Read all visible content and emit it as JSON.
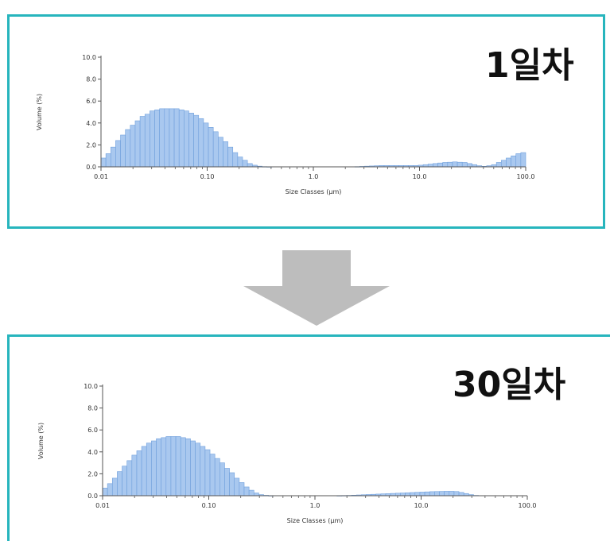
{
  "panels": [
    {
      "label": "1일차"
    },
    {
      "label": "30일차"
    }
  ],
  "colors": {
    "border": "#27b5bd",
    "bar_fill": "#a9c8ef",
    "bar_stroke": "#6f9fdc",
    "arrow": "#bdbdbd",
    "axis": "#555555"
  },
  "chart_data": [
    {
      "type": "bar",
      "xlabel": "Size Classes (µm)",
      "ylabel": "Volume (%)",
      "xscale": "log",
      "xlim": [
        0.01,
        100.0
      ],
      "ylim": [
        0,
        10
      ],
      "xticks": [
        "0.01",
        "0.10",
        "1.0",
        "10.0",
        "100.0"
      ],
      "yticks": [
        "0.0",
        "2.0",
        "4.0",
        "6.0",
        "8.0",
        "10.0"
      ],
      "grid": false,
      "x": [
        0.0106,
        0.0118,
        0.0131,
        0.0146,
        0.0162,
        0.018,
        0.0201,
        0.0223,
        0.0248,
        0.0276,
        0.0307,
        0.0341,
        0.0379,
        0.0421,
        0.0469,
        0.0521,
        0.058,
        0.0644,
        0.0717,
        0.0797,
        0.0886,
        0.0985,
        0.1096,
        0.1218,
        0.1355,
        0.1507,
        0.1675,
        0.1863,
        0.2071,
        0.2303,
        0.2561,
        0.2848,
        0.3167,
        0.3521,
        0.3915,
        0.4353,
        0.4841,
        0.5383,
        0.5986,
        0.6656,
        0.7401,
        0.823,
        0.9151,
        1.0176,
        1.1315,
        1.2582,
        1.3991,
        1.5557,
        1.7299,
        1.9236,
        2.139,
        2.3785,
        2.6448,
        2.941,
        3.2703,
        3.6364,
        4.0436,
        4.4963,
        4.9998,
        5.5596,
        6.1821,
        6.8744,
        7.6441,
        8.5,
        9.4517,
        10.5101,
        11.6869,
        12.9956,
        14.4507,
        16.0688,
        17.868,
        19.8688,
        22.0935,
        24.5673,
        27.3182,
        30.3771,
        33.7785,
        37.5607,
        41.7665,
        46.4431,
        51.6434,
        57.4259,
        63.856,
        71.006,
        78.9566,
        87.7975,
        97.6283
      ],
      "series": [
        {
          "values": [
            0.8,
            1.2,
            1.8,
            2.4,
            2.9,
            3.4,
            3.8,
            4.2,
            4.6,
            4.8,
            5.1,
            5.2,
            5.3,
            5.3,
            5.3,
            5.3,
            5.2,
            5.1,
            4.9,
            4.7,
            4.4,
            4.0,
            3.6,
            3.2,
            2.7,
            2.3,
            1.8,
            1.3,
            0.9,
            0.6,
            0.3,
            0.15,
            0.06,
            0.02,
            0.01,
            0,
            0,
            0,
            0,
            0,
            0,
            0,
            0,
            0,
            0,
            0,
            0,
            0,
            0,
            0,
            0,
            0,
            0.02,
            0.04,
            0.06,
            0.08,
            0.1,
            0.12,
            0.12,
            0.12,
            0.12,
            0.12,
            0.12,
            0.12,
            0.12,
            0.15,
            0.2,
            0.25,
            0.3,
            0.35,
            0.4,
            0.42,
            0.45,
            0.42,
            0.4,
            0.3,
            0.2,
            0.1,
            0.05,
            0.1,
            0.2,
            0.4,
            0.6,
            0.8,
            1.0,
            1.2,
            1.3
          ]
        }
      ]
    },
    {
      "type": "bar",
      "xlabel": "Size Classes (µm)",
      "ylabel": "Volume (%)",
      "xscale": "log",
      "xlim": [
        0.01,
        100.0
      ],
      "ylim": [
        0,
        10
      ],
      "xticks": [
        "0.01",
        "0.10",
        "1.0",
        "10.0",
        "100.0"
      ],
      "yticks": [
        "0.0",
        "2.0",
        "4.0",
        "6.0",
        "8.0",
        "10.0"
      ],
      "grid": false,
      "x": [
        0.0106,
        0.0118,
        0.0131,
        0.0146,
        0.0162,
        0.018,
        0.0201,
        0.0223,
        0.0248,
        0.0276,
        0.0307,
        0.0341,
        0.0379,
        0.0421,
        0.0469,
        0.0521,
        0.058,
        0.0644,
        0.0717,
        0.0797,
        0.0886,
        0.0985,
        0.1096,
        0.1218,
        0.1355,
        0.1507,
        0.1675,
        0.1863,
        0.2071,
        0.2303,
        0.2561,
        0.2848,
        0.3167,
        0.3521,
        0.3915,
        0.4353,
        0.4841,
        0.5383,
        0.5986,
        0.6656,
        0.7401,
        0.823,
        0.9151,
        1.0176,
        1.1315,
        1.2582,
        1.3991,
        1.5557,
        1.7299,
        1.9236,
        2.139,
        2.3785,
        2.6448,
        2.941,
        3.2703,
        3.6364,
        4.0436,
        4.4963,
        4.9998,
        5.5596,
        6.1821,
        6.8744,
        7.6441,
        8.5,
        9.4517,
        10.5101,
        11.6869,
        12.9956,
        14.4507,
        16.0688,
        17.868,
        19.8688,
        22.0935,
        24.5673,
        27.3182,
        30.3771,
        33.7785,
        37.5607,
        41.7665,
        46.4431,
        51.6434,
        57.4259,
        63.856,
        71.006,
        78.9566,
        87.7975,
        97.6283
      ],
      "series": [
        {
          "values": [
            0.7,
            1.1,
            1.6,
            2.2,
            2.7,
            3.2,
            3.7,
            4.1,
            4.5,
            4.8,
            5.0,
            5.2,
            5.3,
            5.4,
            5.4,
            5.4,
            5.3,
            5.2,
            5.0,
            4.8,
            4.5,
            4.2,
            3.8,
            3.4,
            3.0,
            2.5,
            2.1,
            1.6,
            1.2,
            0.8,
            0.5,
            0.25,
            0.1,
            0.04,
            0.01,
            0,
            0,
            0,
            0,
            0,
            0,
            0,
            0,
            0,
            0,
            0,
            0,
            0,
            0.01,
            0.02,
            0.03,
            0.05,
            0.07,
            0.09,
            0.11,
            0.13,
            0.15,
            0.17,
            0.19,
            0.21,
            0.23,
            0.25,
            0.27,
            0.29,
            0.31,
            0.33,
            0.35,
            0.37,
            0.38,
            0.39,
            0.4,
            0.4,
            0.38,
            0.3,
            0.2,
            0.1,
            0.03,
            0,
            0,
            0,
            0,
            0,
            0,
            0,
            0,
            0,
            0
          ]
        }
      ]
    }
  ]
}
